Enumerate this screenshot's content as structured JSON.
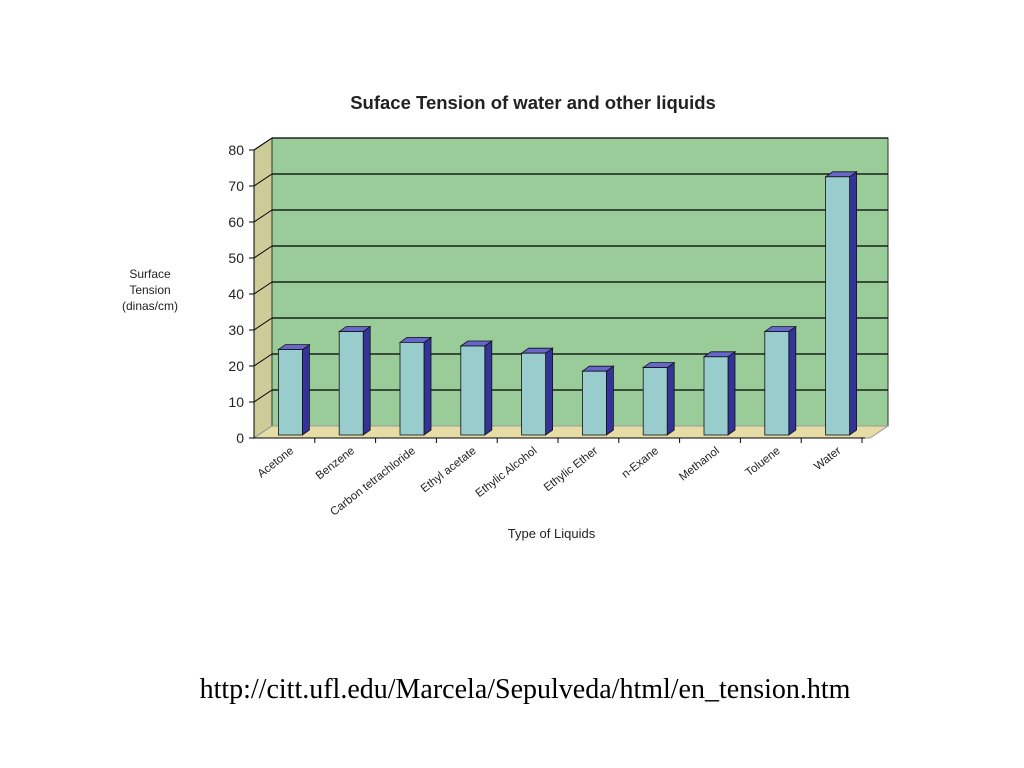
{
  "chart_data": {
    "type": "bar",
    "title": "Suface Tension of water and other liquids",
    "ylabel_lines": [
      "Surface",
      "Tension",
      "(dinas/cm)"
    ],
    "xlabel": "Type of Liquids",
    "categories": [
      "Acetone",
      "Benzene",
      "Carbon tetrachloride",
      "Ethyl acetate",
      "Ethylic Alcohol",
      "Ethylic Ether",
      "n-Exane",
      "Methanol",
      "Toluene",
      "Water"
    ],
    "values": [
      24,
      29,
      26,
      25,
      23,
      18,
      19,
      22,
      29,
      72
    ],
    "ylim": [
      0,
      80
    ],
    "yticks": [
      0,
      10,
      20,
      30,
      40,
      50,
      60,
      70,
      80
    ],
    "grid": true,
    "legend": "none",
    "colors": {
      "plot_bg": "#99cc99",
      "side_wall": "#cccc99",
      "floor": "#e6dca6",
      "bar_front": "#99cccc",
      "bar_side": "#333399",
      "bar_top": "#6666cc",
      "grid": "#000000"
    }
  },
  "footer": {
    "url": "http://citt.ufl.edu/Marcela/Sepulveda/html/en_tension.htm"
  }
}
